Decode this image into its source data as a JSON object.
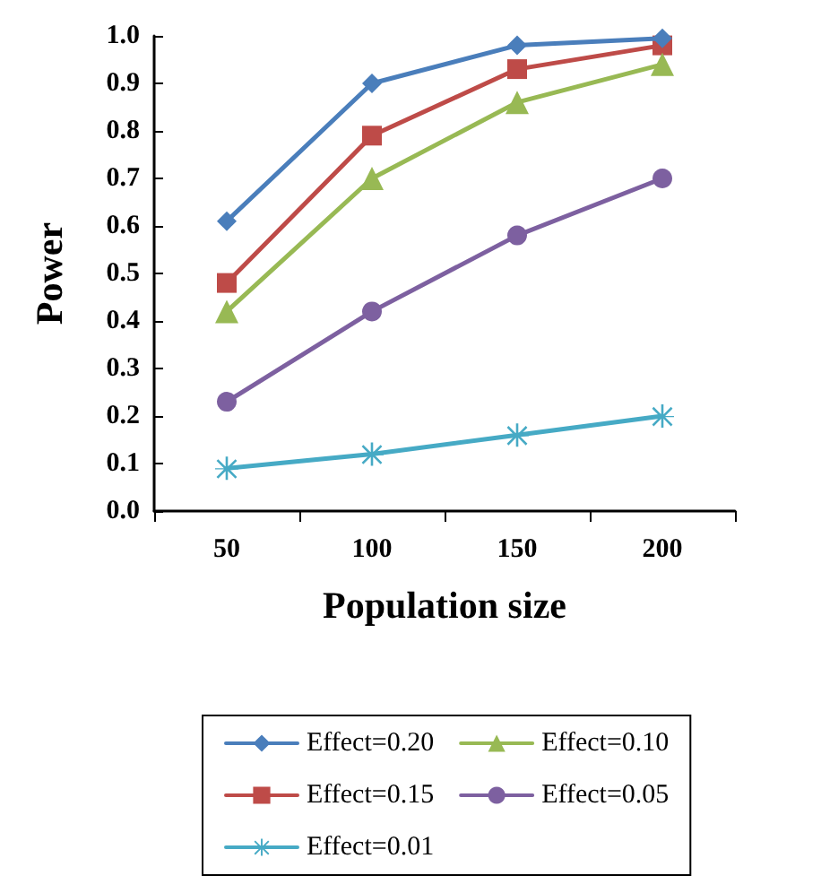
{
  "chart_data": {
    "type": "line",
    "xlabel": "Population size",
    "ylabel": "Power",
    "categories": [
      "50",
      "100",
      "150",
      "200"
    ],
    "series": [
      {
        "name": "Effect=0.20",
        "color": "#4a7ebb",
        "marker": "diamond",
        "values": [
          0.61,
          0.9,
          0.98,
          0.995
        ]
      },
      {
        "name": "Effect=0.10",
        "color": "#98b954",
        "marker": "triangle",
        "values": [
          0.42,
          0.7,
          0.86,
          0.94
        ]
      },
      {
        "name": "Effect=0.15",
        "color": "#be4b48",
        "marker": "square",
        "values": [
          0.48,
          0.79,
          0.93,
          0.98
        ]
      },
      {
        "name": "Effect=0.05",
        "color": "#7d60a0",
        "marker": "circle",
        "values": [
          0.23,
          0.42,
          0.58,
          0.7
        ]
      },
      {
        "name": "Effect=0.01",
        "color": "#46aac5",
        "marker": "cross",
        "values": [
          0.09,
          0.12,
          0.16,
          0.2
        ]
      }
    ],
    "ylim": [
      0,
      1
    ],
    "yticks": [
      {
        "value": 0,
        "label": "0.0"
      },
      0.1,
      0.2,
      0.3,
      0.4,
      0.5,
      0.6,
      0.7,
      0.8,
      0.9,
      {
        "value": 1,
        "label": "1.0"
      }
    ],
    "grid": false,
    "legend": "bottom",
    "line_style": "solid"
  }
}
